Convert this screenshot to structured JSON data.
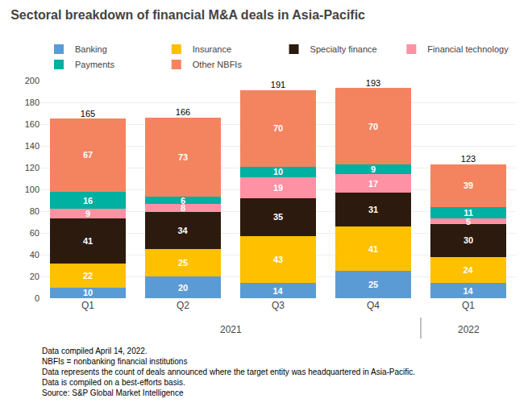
{
  "chart_data": {
    "type": "bar",
    "stacked": true,
    "title": "Sectoral breakdown of financial M&A deals in Asia-Pacific",
    "categories": [
      "Q1",
      "Q2",
      "Q3",
      "Q4",
      "Q1"
    ],
    "group_labels": [
      "2021",
      "2021",
      "2021",
      "2021",
      "2022"
    ],
    "series": [
      {
        "name": "Banking",
        "color": "#5B9BD5",
        "values": [
          10,
          20,
          14,
          25,
          14
        ]
      },
      {
        "name": "Insurance",
        "color": "#FFC000",
        "values": [
          22,
          25,
          43,
          41,
          24
        ]
      },
      {
        "name": "Specialty finance",
        "color": "#2C1A0E",
        "values": [
          41,
          34,
          35,
          31,
          30
        ]
      },
      {
        "name": "Financial technology",
        "color": "#FF91A4",
        "values": [
          9,
          8,
          19,
          17,
          5
        ]
      },
      {
        "name": "Payments",
        "color": "#00B0A0",
        "values": [
          16,
          6,
          10,
          9,
          11
        ]
      },
      {
        "name": "Other NBFIs",
        "color": "#F4845F",
        "values": [
          67,
          73,
          70,
          70,
          39
        ]
      }
    ],
    "totals": [
      165,
      166,
      191,
      193,
      123
    ],
    "ylim": [
      0,
      200
    ],
    "yticks": [
      0,
      20,
      40,
      60,
      80,
      100,
      120,
      140,
      160,
      180,
      200
    ],
    "grid": true,
    "legend": "top",
    "data_labels": true,
    "footnotes": [
      "Data compiled April 14, 2022.",
      "NBFIs = nonbanking financial institutions",
      "Data represents the count of deals announced where the target entity was headquartered in Asia-Pacific.",
      "Data is compiled on a best-efforts basis.",
      "Source: S&P Global Market Intelligence"
    ]
  }
}
